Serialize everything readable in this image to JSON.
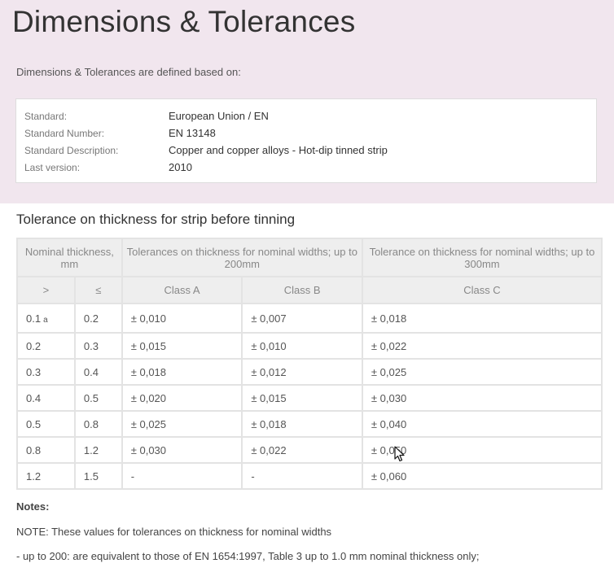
{
  "page": {
    "title": "Dimensions & Tolerances",
    "intro": "Dimensions & Tolerances are defined based on:"
  },
  "standard": [
    {
      "label": "Standard:",
      "value": "European Union / EN"
    },
    {
      "label": "Standard Number:",
      "value": "EN 13148"
    },
    {
      "label": "Standard Description:",
      "value": "Copper and copper alloys - Hot-dip tinned strip"
    },
    {
      "label": "Last version:",
      "value": "2010"
    }
  ],
  "section": {
    "title": "Tolerance on thickness for strip before tinning"
  },
  "table": {
    "header_row1": {
      "nominal": "Nominal thickness, mm",
      "group_200": "Tolerances on thickness for nominal widths; up to 200mm",
      "group_300": "Tolerance on thickness for nominal widths; up to 300mm"
    },
    "header_row2": {
      "gt": ">",
      "le": "≤",
      "class_a": "Class A",
      "class_b": "Class B",
      "class_c": "Class C"
    },
    "rows": [
      {
        "gt": "0.1",
        "note": "a",
        "le": "0.2",
        "a": "± 0,010",
        "b": "± 0,007",
        "c": "± 0,018"
      },
      {
        "gt": "0.2",
        "note": "",
        "le": "0.3",
        "a": "± 0,015",
        "b": "± 0,010",
        "c": "± 0,022"
      },
      {
        "gt": "0.3",
        "note": "",
        "le": "0.4",
        "a": "± 0,018",
        "b": "± 0,012",
        "c": "± 0,025"
      },
      {
        "gt": "0.4",
        "note": "",
        "le": "0.5",
        "a": "± 0,020",
        "b": "± 0,015",
        "c": "± 0,030"
      },
      {
        "gt": "0.5",
        "note": "",
        "le": "0.8",
        "a": "± 0,025",
        "b": "± 0,018",
        "c": "± 0,040"
      },
      {
        "gt": "0.8",
        "note": "",
        "le": "1.2",
        "a": "± 0,030",
        "b": "± 0,022",
        "c": "± 0,050"
      },
      {
        "gt": "1.2",
        "note": "",
        "le": "1.5",
        "a": "-",
        "b": "-",
        "c": "± 0,060"
      }
    ]
  },
  "notes": {
    "title": "Notes:",
    "lines": [
      "NOTE: These values for tolerances on thickness for nominal widths",
      "- up to 200: are equivalent to those of EN 1654:1997, Table 3 up to 1.0 mm nominal thickness only;"
    ]
  },
  "icons": {
    "cursor": "mouse-pointer-icon"
  }
}
